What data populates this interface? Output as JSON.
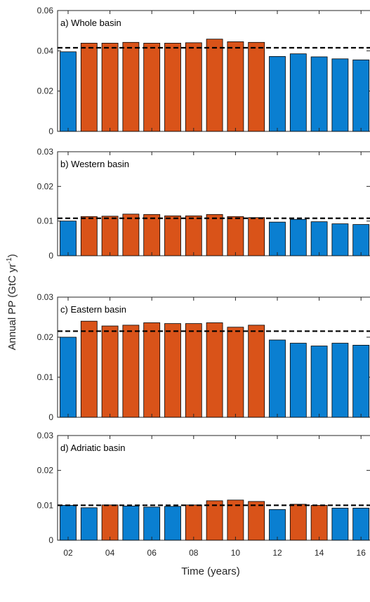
{
  "y_label": {
    "text": "Annual PP (GtC yr",
    "superscript": "-1",
    "close": ")"
  },
  "x_axis": {
    "label": "Time (years)",
    "categories": [
      "02",
      null,
      "04",
      null,
      "06",
      null,
      "08",
      null,
      "10",
      null,
      "12",
      null,
      "14",
      null,
      "16"
    ]
  },
  "chart_data": [
    {
      "type": "bar",
      "title": "a) Whole basin",
      "values": [
        0.0395,
        0.0438,
        0.0438,
        0.0442,
        0.0438,
        0.0438,
        0.044,
        0.0458,
        0.0445,
        0.0442,
        0.0372,
        0.0385,
        0.037,
        0.036,
        0.0355
      ],
      "colors": [
        "#0a7fd1",
        "#d95319",
        "#d95319",
        "#d95319",
        "#d95319",
        "#d95319",
        "#d95319",
        "#d95319",
        "#d95319",
        "#d95319",
        "#0a7fd1",
        "#0a7fd1",
        "#0a7fd1",
        "#0a7fd1",
        "#0a7fd1"
      ],
      "mean": 0.0415,
      "ylim": [
        0,
        0.06
      ],
      "yticks": [
        0,
        0.02,
        0.04,
        0.06
      ]
    },
    {
      "type": "bar",
      "title": "b) Western basin",
      "values": [
        0.01,
        0.0113,
        0.0114,
        0.012,
        0.0119,
        0.0115,
        0.0115,
        0.0119,
        0.0113,
        0.011,
        0.0097,
        0.0105,
        0.0098,
        0.0092,
        0.009
      ],
      "colors": [
        "#0a7fd1",
        "#d95319",
        "#d95319",
        "#d95319",
        "#d95319",
        "#d95319",
        "#d95319",
        "#d95319",
        "#d95319",
        "#d95319",
        "#0a7fd1",
        "#0a7fd1",
        "#0a7fd1",
        "#0a7fd1",
        "#0a7fd1"
      ],
      "mean": 0.0108,
      "ylim": [
        0,
        0.03
      ],
      "yticks": [
        0,
        0.01,
        0.02,
        0.03
      ]
    },
    {
      "type": "bar",
      "title": "c) Eastern basin",
      "values": [
        0.02,
        0.024,
        0.0228,
        0.023,
        0.0236,
        0.0234,
        0.0234,
        0.0236,
        0.0225,
        0.023,
        0.0193,
        0.0185,
        0.0178,
        0.0185,
        0.018
      ],
      "colors": [
        "#0a7fd1",
        "#d95319",
        "#d95319",
        "#d95319",
        "#d95319",
        "#d95319",
        "#d95319",
        "#d95319",
        "#d95319",
        "#d95319",
        "#0a7fd1",
        "#0a7fd1",
        "#0a7fd1",
        "#0a7fd1",
        "#0a7fd1"
      ],
      "mean": 0.0215,
      "ylim": [
        0,
        0.03
      ],
      "yticks": [
        0,
        0.01,
        0.02,
        0.03
      ]
    },
    {
      "type": "bar",
      "title": "d) Adriatic basin",
      "values": [
        0.01,
        0.0093,
        0.0101,
        0.0098,
        0.0095,
        0.0097,
        0.0101,
        0.0113,
        0.0115,
        0.0111,
        0.0088,
        0.0103,
        0.01,
        0.0092,
        0.0092
      ],
      "colors": [
        "#0a7fd1",
        "#0a7fd1",
        "#d95319",
        "#0a7fd1",
        "#0a7fd1",
        "#0a7fd1",
        "#d95319",
        "#d95319",
        "#d95319",
        "#d95319",
        "#0a7fd1",
        "#d95319",
        "#d95319",
        "#0a7fd1",
        "#0a7fd1"
      ],
      "mean": 0.01,
      "ylim": [
        0,
        0.03
      ],
      "yticks": [
        0,
        0.01,
        0.02,
        0.03
      ]
    }
  ]
}
